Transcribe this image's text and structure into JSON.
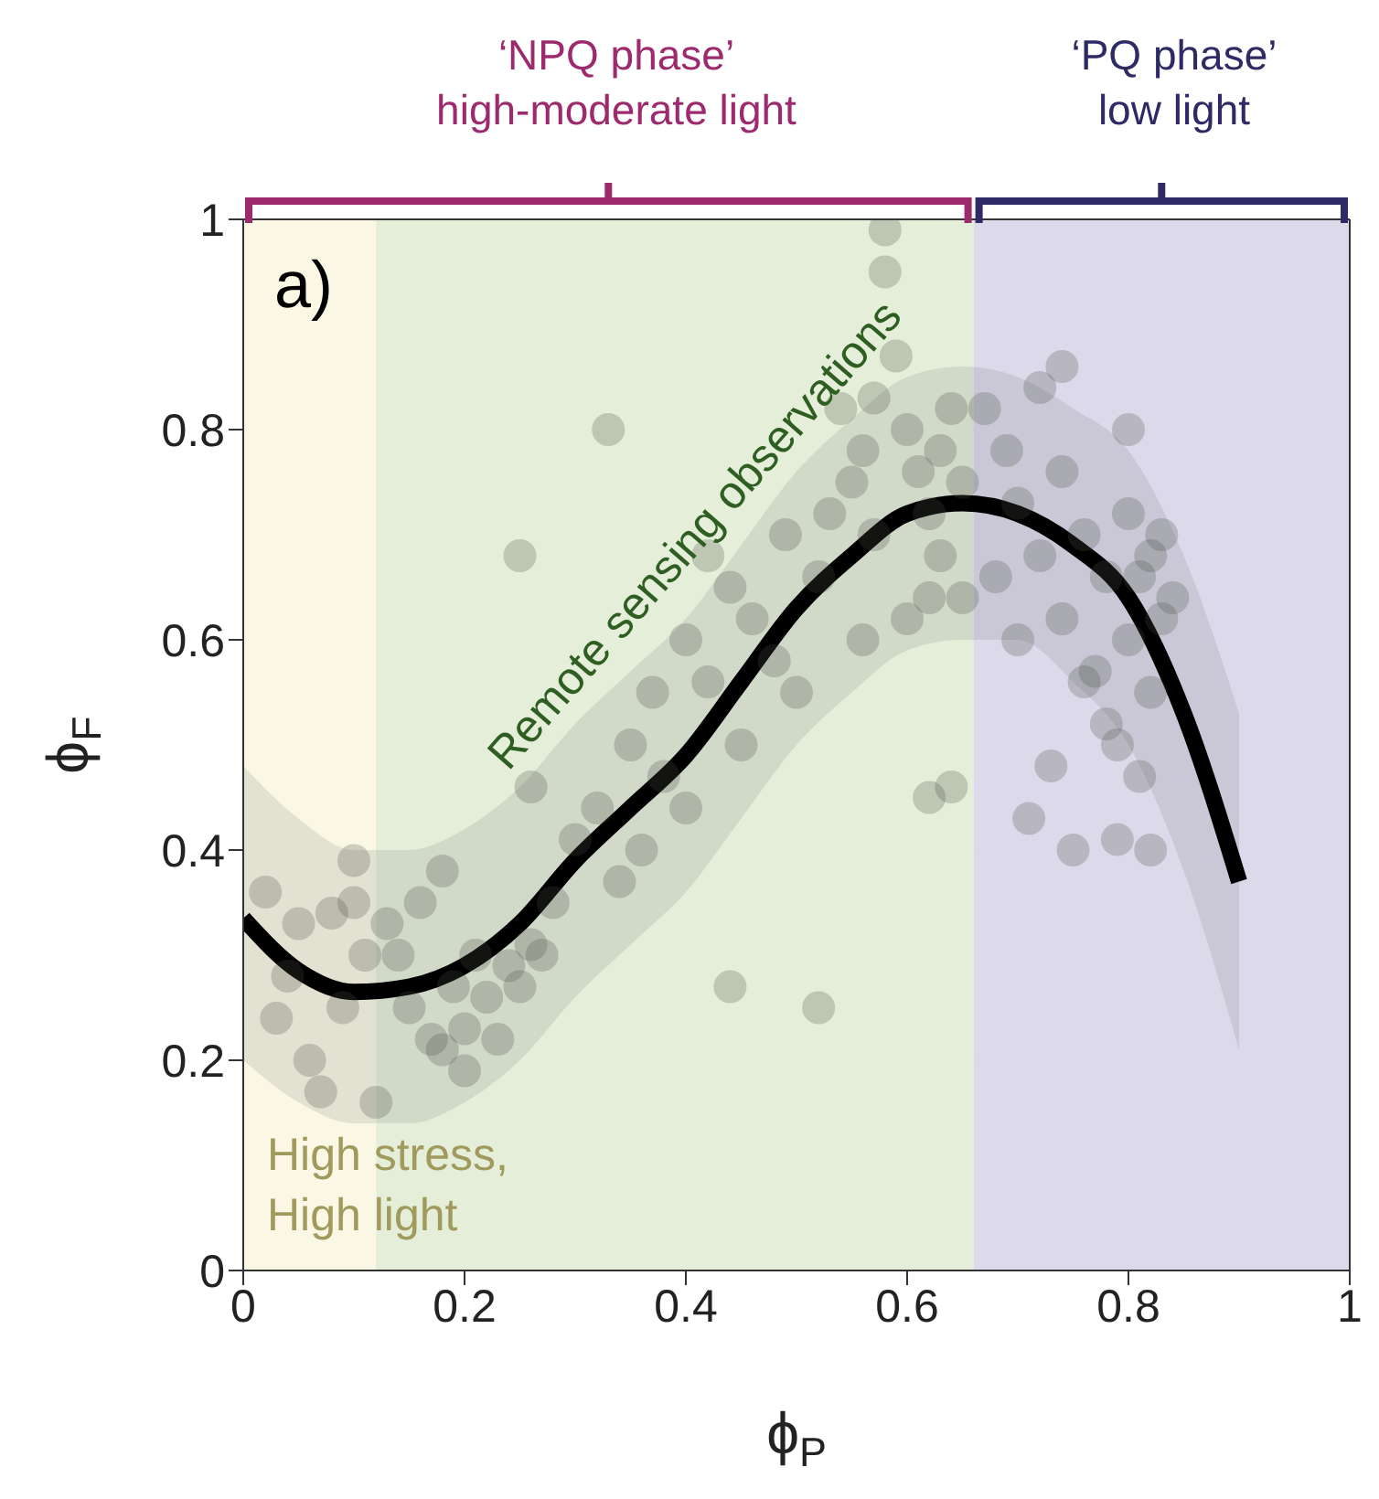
{
  "chart_data": {
    "type": "scatter",
    "xlabel": "ϕ$_{P}$",
    "ylabel": "ϕ$_{F}$",
    "xlim": [
      0,
      1
    ],
    "ylim": [
      0,
      1
    ],
    "xticks": [
      0,
      0.2,
      0.4,
      0.6,
      0.8,
      1
    ],
    "yticks": [
      0,
      0.2,
      0.4,
      0.6,
      0.8,
      1
    ],
    "grid": true,
    "marker": "circle",
    "line_style": "solid",
    "bands": [
      {
        "axis": "x",
        "from": 0,
        "to": 0.12,
        "color": "#faf8e4"
      },
      {
        "axis": "x",
        "from": 0.12,
        "to": 0.66,
        "color": "#e4eed8"
      },
      {
        "axis": "x",
        "from": 0.66,
        "to": 1,
        "color": "#dcdaea"
      }
    ],
    "annotations": [
      "‘NPQ phase’",
      "high-moderate light",
      "‘PQ phase’",
      "low light",
      "a)",
      "Remote sensing observations",
      "High stress,",
      "High light"
    ],
    "series": [
      {
        "color": "#4a5048",
        "x": [
          0.02,
          0.05,
          0.08,
          0.1,
          0.04,
          0.06,
          0.07,
          0.09,
          0.11,
          0.03,
          0.14,
          0.15,
          0.17,
          0.18,
          0.2,
          0.22,
          0.24,
          0.26,
          0.28,
          0.16,
          0.13,
          0.19,
          0.21,
          0.25,
          0.12,
          0.18,
          0.1,
          0.27,
          0.23,
          0.2,
          0.25,
          0.26,
          0.33,
          0.52,
          0.44,
          0.62,
          0.64,
          0.3,
          0.32,
          0.35,
          0.37,
          0.38,
          0.4,
          0.42,
          0.44,
          0.45,
          0.46,
          0.48,
          0.5,
          0.49,
          0.52,
          0.36,
          0.4,
          0.42,
          0.34,
          0.53,
          0.55,
          0.56,
          0.57,
          0.58,
          0.58,
          0.59,
          0.6,
          0.61,
          0.62,
          0.63,
          0.64,
          0.65,
          0.6,
          0.56,
          0.62,
          0.54,
          0.65,
          0.57,
          0.63,
          0.67,
          0.69,
          0.7,
          0.72,
          0.72,
          0.74,
          0.74,
          0.76,
          0.76,
          0.78,
          0.78,
          0.8,
          0.8,
          0.81,
          0.82,
          0.82,
          0.83,
          0.79,
          0.81,
          0.84,
          0.7,
          0.68,
          0.73,
          0.71,
          0.75,
          0.79,
          0.82,
          0.77,
          0.83,
          0.74,
          0.8
        ],
        "values": [
          0.36,
          0.33,
          0.34,
          0.39,
          0.28,
          0.2,
          0.17,
          0.25,
          0.3,
          0.24,
          0.3,
          0.25,
          0.22,
          0.21,
          0.23,
          0.26,
          0.29,
          0.31,
          0.35,
          0.35,
          0.33,
          0.27,
          0.3,
          0.27,
          0.16,
          0.38,
          0.35,
          0.3,
          0.22,
          0.19,
          0.68,
          0.46,
          0.8,
          0.25,
          0.27,
          0.45,
          0.46,
          0.41,
          0.44,
          0.5,
          0.55,
          0.47,
          0.6,
          0.56,
          0.65,
          0.5,
          0.62,
          0.58,
          0.55,
          0.7,
          0.66,
          0.4,
          0.44,
          0.68,
          0.37,
          0.72,
          0.75,
          0.78,
          0.83,
          0.99,
          0.95,
          0.87,
          0.8,
          0.76,
          0.72,
          0.68,
          0.82,
          0.75,
          0.62,
          0.6,
          0.64,
          0.82,
          0.64,
          0.7,
          0.78,
          0.82,
          0.78,
          0.73,
          0.84,
          0.68,
          0.76,
          0.62,
          0.7,
          0.56,
          0.66,
          0.52,
          0.72,
          0.6,
          0.66,
          0.55,
          0.68,
          0.62,
          0.5,
          0.47,
          0.64,
          0.6,
          0.66,
          0.48,
          0.43,
          0.4,
          0.41,
          0.4,
          0.57,
          0.7,
          0.86,
          0.8
        ]
      },
      {
        "type": "line",
        "color": "#000000",
        "marker": "none",
        "x": [
          0,
          0.05,
          0.1,
          0.15,
          0.2,
          0.25,
          0.3,
          0.35,
          0.4,
          0.45,
          0.5,
          0.55,
          0.6,
          0.65,
          0.7,
          0.75,
          0.8,
          0.85,
          0.9
        ],
        "values": [
          0.335,
          0.285,
          0.265,
          0.27,
          0.29,
          0.33,
          0.39,
          0.44,
          0.49,
          0.56,
          0.63,
          0.68,
          0.72,
          0.73,
          0.72,
          0.69,
          0.64,
          0.53,
          0.37
        ],
        "lower": [
          0.2,
          0.16,
          0.14,
          0.14,
          0.16,
          0.2,
          0.26,
          0.31,
          0.36,
          0.43,
          0.5,
          0.55,
          0.59,
          0.6,
          0.6,
          0.56,
          0.5,
          0.38,
          0.21
        ],
        "upper": [
          0.48,
          0.43,
          0.4,
          0.4,
          0.42,
          0.46,
          0.52,
          0.57,
          0.62,
          0.69,
          0.76,
          0.81,
          0.85,
          0.86,
          0.85,
          0.82,
          0.78,
          0.68,
          0.53
        ]
      }
    ]
  }
}
